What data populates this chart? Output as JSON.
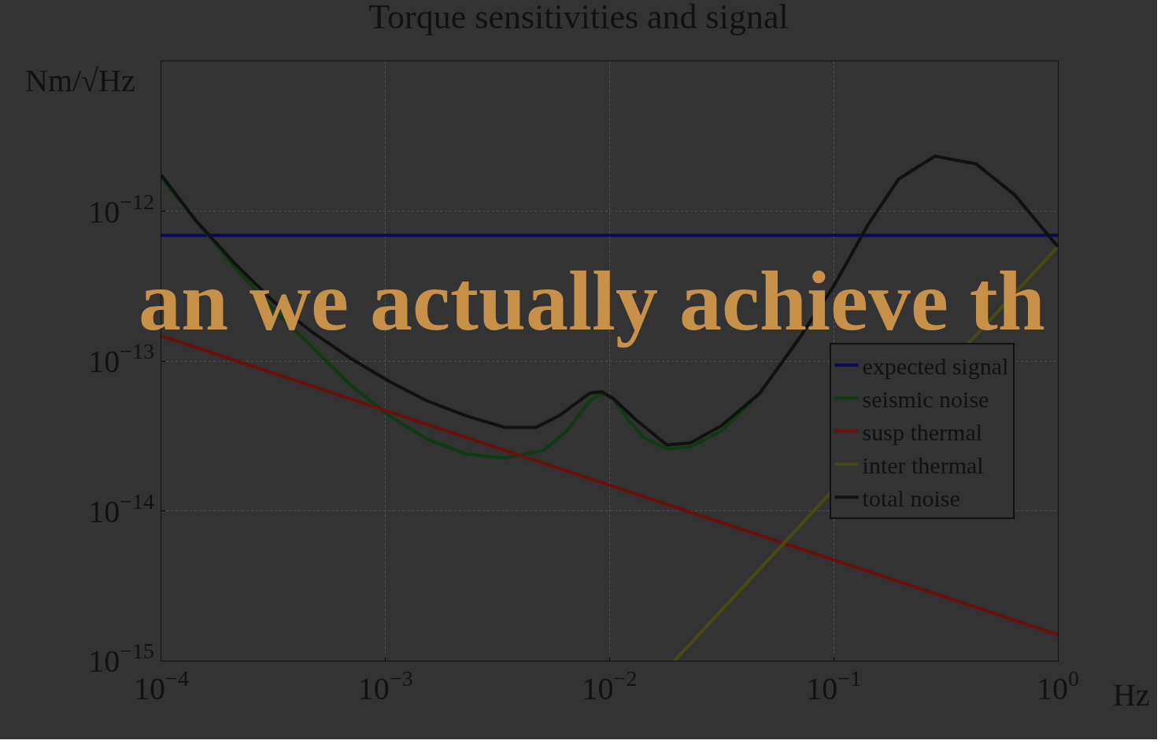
{
  "chart_data": {
    "type": "line",
    "title": "Torque sensitivities and signal",
    "xlabel": "Hz",
    "ylabel": "Nm/√Hz",
    "annotations": [
      "an we actually achieve th"
    ],
    "log": "xy",
    "grid": true,
    "legend": "right",
    "line_style": "solid",
    "marker": "none",
    "xlim": [
      0.0001,
      1
    ],
    "ylim": [
      1e-15,
      1e-11
    ],
    "xticks": [
      {
        "value": 0.0001,
        "label": "10$^{−4}$"
      },
      {
        "value": 0.001,
        "label": "10$^{−3}$"
      },
      {
        "value": 0.01,
        "label": "10$^{−2}$"
      },
      {
        "value": 0.1,
        "label": "10$^{−1}$"
      },
      {
        "value": 1,
        "label": "10$^{0}$"
      }
    ],
    "yticks": [
      {
        "value": 1e-15,
        "label": "10$^{−15}$"
      },
      {
        "value": 1e-14,
        "label": "10$^{−14}$"
      },
      {
        "value": 1e-13,
        "label": "10$^{−13}$"
      },
      {
        "value": 1e-12,
        "label": "10$^{−12}$"
      }
    ],
    "series": [
      {
        "name": "expected signal",
        "color": "#0a0a5a",
        "x": [
          0.0001,
          1
        ],
        "values": [
          6.9e-13,
          6.9e-13
        ]
      },
      {
        "name": "seismic noise",
        "color": "#0f3a14",
        "x": [
          0.0001,
          0.000143,
          0.000212,
          0.000316,
          0.00047,
          0.0007,
          0.00104,
          0.00154,
          0.0023,
          0.00341,
          0.00507,
          0.00643,
          0.00816,
          0.0092,
          0.0104,
          0.0121,
          0.0142,
          0.018,
          0.0229,
          0.0314,
          0.0468,
          0.0695,
          0.1,
          0.142,
          0.195,
          0.283,
          0.431,
          0.64,
          1
        ],
        "values": [
          1.67e-12,
          8.6e-13,
          4.25e-13,
          2.22e-13,
          1.24e-13,
          6.9e-14,
          4.3e-14,
          3e-14,
          2.39e-14,
          2.25e-14,
          2.53e-14,
          3.4e-14,
          5.4e-14,
          6.1e-14,
          5.6e-14,
          4.05e-14,
          3.09e-14,
          2.59e-14,
          2.68e-14,
          3.4e-14,
          6.1e-14,
          1.39e-13,
          3.16e-13,
          8.1e-13,
          1.64e-12,
          2.33e-12,
          2.07e-12,
          1.29e-12,
          5.8e-13
        ]
      },
      {
        "name": "susp thermal",
        "color": "#6b0f0f",
        "x": [
          0.0001,
          1
        ],
        "values": [
          1.47e-13,
          1.49e-15
        ]
      },
      {
        "name": "inter thermal",
        "color": "#4a4a10",
        "x": [
          0.0195,
          0.06,
          1
        ],
        "values": [
          1e-15,
          6.1e-15,
          5.8e-13
        ]
      },
      {
        "name": "total noise",
        "color": "#111111",
        "x": [
          0.0001,
          0.000143,
          0.000212,
          0.000316,
          0.00047,
          0.0007,
          0.00104,
          0.00154,
          0.0023,
          0.00341,
          0.00469,
          0.00594,
          0.00816,
          0.0092,
          0.0104,
          0.0131,
          0.018,
          0.0229,
          0.0314,
          0.0468,
          0.0695,
          0.1,
          0.142,
          0.195,
          0.283,
          0.431,
          0.64,
          1
        ],
        "values": [
          1.74e-12,
          8.6e-13,
          4.5e-13,
          2.5e-13,
          1.56e-13,
          1.04e-13,
          7.3e-14,
          5.4e-14,
          4.3e-14,
          3.6e-14,
          3.6e-14,
          4.3e-14,
          6.1e-14,
          6.25e-14,
          5.6e-14,
          4.05e-14,
          2.75e-14,
          2.84e-14,
          3.68e-14,
          6.1e-14,
          1.39e-13,
          3.16e-13,
          8.1e-13,
          1.64e-12,
          2.33e-12,
          2.07e-12,
          1.29e-12,
          5.8e-13
        ]
      }
    ]
  }
}
